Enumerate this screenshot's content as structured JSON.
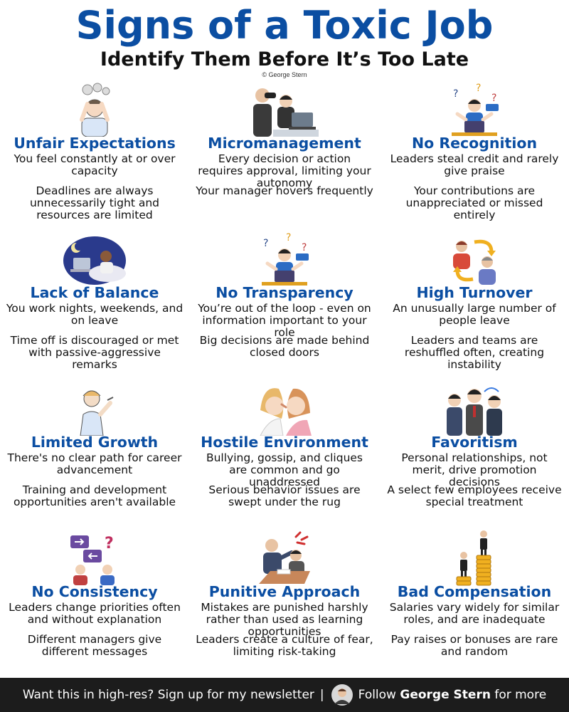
{
  "header": {
    "title": "Signs of a Toxic Job",
    "subtitle": "Identify Them Before It’s Too Late",
    "copyright": "© George Stern"
  },
  "cards": [
    {
      "title": "Unfair Expectations",
      "text1": "You feel constantly at or over capacity",
      "text2": "Deadlines are always unnecessarily tight and resources are limited",
      "icon": "stressed-person-icon"
    },
    {
      "title": "Micromanagement",
      "text1": "Every decision or action requires approval, limiting your autonomy",
      "text2": "Your manager hovers frequently",
      "icon": "manager-binoculars-icon"
    },
    {
      "title": "No Recognition",
      "text1": "Leaders steal credit and rarely give praise",
      "text2": "Your contributions are unappreciated or missed entirely",
      "icon": "confused-worker-icon"
    },
    {
      "title": "Lack of Balance",
      "text1": "You work nights, weekends, and on leave",
      "text2": "Time off is discouraged or met with passive-aggressive remarks",
      "icon": "night-work-icon"
    },
    {
      "title": "No Transparency",
      "text1": "You’re out of the loop - even on information important to your role",
      "text2": "Big decisions are made behind closed doors",
      "icon": "confused-worker-icon"
    },
    {
      "title": "High Turnover",
      "text1": "An unusually large number of people leave",
      "text2": "Leaders and teams are reshuffled often, creating instability",
      "icon": "people-swap-icon"
    },
    {
      "title": "Limited Growth",
      "text1": "There's no clear path for career advancement",
      "text2": "Training and development opportunities aren't available",
      "icon": "tired-person-icon"
    },
    {
      "title": "Hostile Environment",
      "text1": "Bullying, gossip, and cliques are common and go unaddressed",
      "text2": "Serious behavior issues are swept under the rug",
      "icon": "gossip-icon"
    },
    {
      "title": "Favoritism",
      "text1": "Personal relationships, not merit, drive promotion decisions",
      "text2": "A select few employees receive special treatment",
      "icon": "business-group-icon"
    },
    {
      "title": "No Consistency",
      "text1": "Leaders change priorities often and without explanation",
      "text2": "Different managers give different messages",
      "icon": "mixed-signals-icon"
    },
    {
      "title": "Punitive Approach",
      "text1": "Mistakes are punished harshly rather than used as learning opportunities",
      "text2": "Leaders create a culture of fear, limiting risk-taking",
      "icon": "angry-boss-icon"
    },
    {
      "title": "Bad Compensation",
      "text1": "Salaries vary widely for similar roles, and are inadequate",
      "text2": "Pay raises or bonuses are rare and random",
      "icon": "coin-stacks-icon"
    }
  ],
  "footer": {
    "cta": "Want this in high-res? Sign up for my newsletter",
    "separator": "|",
    "follow_prefix": "Follow",
    "follow_name": "George Stern",
    "follow_suffix": "for more"
  },
  "colors": {
    "accent": "#0b4ea2",
    "footer_bg": "#1c1c1c"
  }
}
